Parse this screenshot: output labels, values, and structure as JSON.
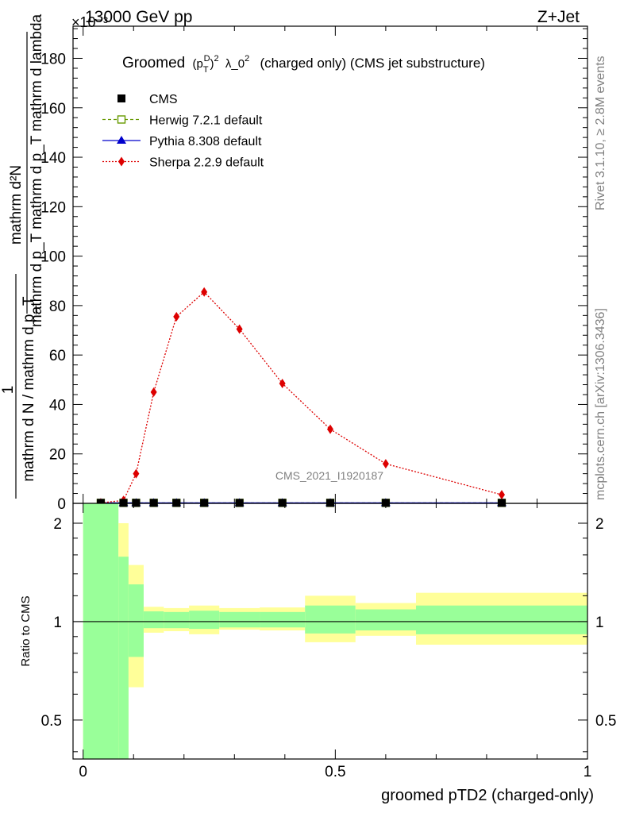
{
  "header": {
    "left": "13000 GeV pp",
    "right": "Z+Jet",
    "exponent": "×10⁻³"
  },
  "side_text": {
    "rivet": "Rivet 3.1.10, ≥ 2.8M events",
    "mcplots": "mcplots.cern.ch [arXiv:1306.3436]"
  },
  "watermark": "CMS_2021_I1920187",
  "chart_data": [
    {
      "type": "line",
      "title": "Groomed (p_T^D)^2 λ_0^2 (charged only) (CMS jet substructure)",
      "title_parts": {
        "a": "Groomed",
        "b": "(p",
        "c": "T",
        "d": "D",
        "e": ")",
        "f": "2",
        "g": "λ_0",
        "h": "2",
        "i": "(charged only) (CMS jet substructure)"
      },
      "ylabel_top": "mathrm d²N",
      "ylabel_mid": "mathrm d p_T mathrm d p_T mathrm d lambda",
      "ylabel_one": "1",
      "ylabel_bottom": "mathrm d N / mathrm d p_T",
      "ylim": [
        0,
        193
      ],
      "xlim": [
        -0.02,
        1.0
      ],
      "yticks": [
        0,
        20,
        40,
        60,
        80,
        100,
        120,
        140,
        160,
        180
      ],
      "ytick_labels": [
        "0",
        "20",
        "40",
        "60",
        "80",
        "100",
        "120",
        "140",
        "160",
        "180"
      ],
      "legend_position": "top-left",
      "series": [
        {
          "name": "CMS",
          "color": "#000000",
          "marker": "square",
          "x": [
            0.035,
            0.08,
            0.105,
            0.14,
            0.185,
            0.24,
            0.31,
            0.395,
            0.49,
            0.6,
            0.83
          ],
          "y": [
            0.2,
            0.2,
            0.2,
            0.2,
            0.2,
            0.2,
            0.2,
            0.2,
            0.2,
            0.2,
            0.2
          ]
        },
        {
          "name": "Herwig 7.2.1 default",
          "color": "#669900",
          "marker": "open-square",
          "x": [
            0.035,
            0.08,
            0.105,
            0.14,
            0.185,
            0.24,
            0.31,
            0.395,
            0.49,
            0.6,
            0.83
          ],
          "y": [
            0.2,
            0.2,
            0.2,
            0.2,
            0.2,
            0.2,
            0.2,
            0.2,
            0.2,
            0.2,
            0.2
          ]
        },
        {
          "name": "Pythia 8.308 default",
          "color": "#0000cc",
          "marker": "triangle",
          "x": [
            0.035,
            0.08,
            0.105,
            0.14,
            0.185,
            0.24,
            0.31,
            0.395,
            0.49,
            0.6,
            0.83
          ],
          "y": [
            0.2,
            0.2,
            0.2,
            0.2,
            0.2,
            0.2,
            0.2,
            0.2,
            0.2,
            0.2,
            0.2
          ]
        },
        {
          "name": "Sherpa 2.2.9 default",
          "color": "#dd0000",
          "marker": "diamond",
          "x": [
            0.035,
            0.08,
            0.105,
            0.14,
            0.185,
            0.24,
            0.31,
            0.395,
            0.49,
            0.6,
            0.83
          ],
          "y": [
            0.2,
            1.2,
            12,
            45,
            75.5,
            85.5,
            70.5,
            48.5,
            30,
            16,
            3.5
          ]
        }
      ]
    },
    {
      "type": "area",
      "ylabel": "Ratio to CMS",
      "xlabel": "groomed pTD2 (charged-only)",
      "ylim": [
        0.38,
        2.3
      ],
      "log_y": true,
      "xlim": [
        -0.02,
        1.0
      ],
      "xticks": [
        0,
        0.5,
        1
      ],
      "xtick_labels": [
        "0",
        "0.5",
        "1"
      ],
      "yticks": [
        0.5,
        1,
        2
      ],
      "ytick_labels": [
        "0.5",
        "1",
        "2"
      ],
      "reference_line": 1,
      "band_colors": {
        "stat": "#99ff99",
        "total": "#ffff99"
      },
      "bins": [
        {
          "lo": 0.0,
          "hi": 0.07,
          "stat": [
            0.3,
            3.0
          ],
          "total": [
            0.3,
            3.0
          ]
        },
        {
          "lo": 0.07,
          "hi": 0.09,
          "stat": [
            0.3,
            1.58
          ],
          "total": [
            0.3,
            2.0
          ]
        },
        {
          "lo": 0.09,
          "hi": 0.12,
          "stat": [
            0.78,
            1.3
          ],
          "total": [
            0.63,
            1.49
          ]
        },
        {
          "lo": 0.12,
          "hi": 0.16,
          "stat": [
            0.955,
            1.075
          ],
          "total": [
            0.925,
            1.11
          ]
        },
        {
          "lo": 0.16,
          "hi": 0.21,
          "stat": [
            0.955,
            1.07
          ],
          "total": [
            0.935,
            1.1
          ]
        },
        {
          "lo": 0.21,
          "hi": 0.27,
          "stat": [
            0.95,
            1.08
          ],
          "total": [
            0.915,
            1.12
          ]
        },
        {
          "lo": 0.27,
          "hi": 0.35,
          "stat": [
            0.96,
            1.07
          ],
          "total": [
            0.945,
            1.1
          ]
        },
        {
          "lo": 0.35,
          "hi": 0.44,
          "stat": [
            0.96,
            1.07
          ],
          "total": [
            0.94,
            1.105
          ]
        },
        {
          "lo": 0.44,
          "hi": 0.54,
          "stat": [
            0.92,
            1.12
          ],
          "total": [
            0.865,
            1.2
          ]
        },
        {
          "lo": 0.54,
          "hi": 0.66,
          "stat": [
            0.94,
            1.09
          ],
          "total": [
            0.905,
            1.14
          ]
        },
        {
          "lo": 0.66,
          "hi": 1.0,
          "stat": [
            0.915,
            1.12
          ],
          "total": [
            0.85,
            1.225
          ]
        }
      ]
    }
  ]
}
